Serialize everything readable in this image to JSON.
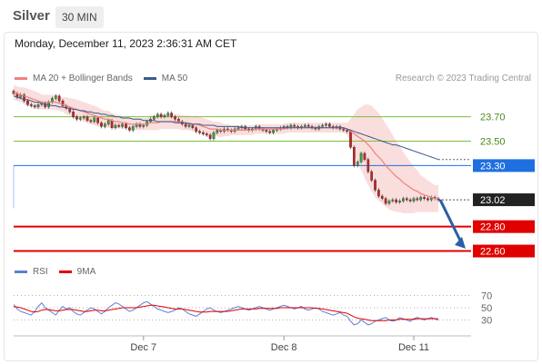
{
  "header": {
    "symbol": "Silver",
    "timeframe": "30 MIN"
  },
  "datetime": "Monday, December 11, 2023 2:36:31 AM CET",
  "copyright": "Research © 2023 Trading Central",
  "colors": {
    "ma20": "#f08080",
    "ma50": "#3a5a8c",
    "bands": "#f7c6c6",
    "resistance": "#7cbf3a",
    "pivot": "#1f6fe0",
    "support": "#e00000",
    "last": "#222222",
    "rsi": "#5b7fd6",
    "rsi_ma": "#e00000",
    "arrow": "#2a5fa8"
  },
  "chart_data": [
    {
      "type": "candlestick",
      "title": "",
      "legend": [
        {
          "name": "MA 20 + Bollinger Bands",
          "color": "#f08080"
        },
        {
          "name": "MA 50",
          "color": "#3a5a8c"
        }
      ],
      "x_ticks": [
        "Dec 7",
        "Dec 8",
        "Dec 11"
      ],
      "ylim": [
        22.5,
        23.95
      ],
      "close": [
        23.89,
        23.86,
        23.88,
        23.83,
        23.8,
        23.79,
        23.78,
        23.8,
        23.81,
        23.78,
        23.82,
        23.85,
        23.87,
        23.83,
        23.79,
        23.77,
        23.74,
        23.7,
        23.68,
        23.69,
        23.7,
        23.67,
        23.66,
        23.69,
        23.65,
        23.62,
        23.64,
        23.67,
        23.61,
        23.63,
        23.62,
        23.64,
        23.61,
        23.59,
        23.62,
        23.64,
        23.62,
        23.63,
        23.66,
        23.68,
        23.7,
        23.72,
        23.7,
        23.71,
        23.73,
        23.7,
        23.68,
        23.66,
        23.64,
        23.62,
        23.63,
        23.61,
        23.58,
        23.57,
        23.56,
        23.55,
        23.52,
        23.57,
        23.59,
        23.58,
        23.6,
        23.59,
        23.58,
        23.6,
        23.61,
        23.62,
        23.6,
        23.59,
        23.6,
        23.62,
        23.6,
        23.59,
        23.58,
        23.57,
        23.59,
        23.6,
        23.61,
        23.62,
        23.61,
        23.63,
        23.62,
        23.61,
        23.62,
        23.63,
        23.62,
        23.61,
        23.6,
        23.62,
        23.63,
        23.64,
        23.62,
        23.61,
        23.62,
        23.6,
        23.59,
        23.58,
        23.45,
        23.3,
        23.33,
        23.4,
        23.35,
        23.25,
        23.18,
        23.1,
        23.05,
        23.03,
        22.99,
        23.01,
        23.02,
        23.0,
        23.01,
        23.03,
        23.02,
        23.01,
        23.03,
        23.02,
        23.04,
        23.03,
        23.02,
        23.04,
        23.03,
        23.02
      ],
      "ma20": [
        23.9,
        23.89,
        23.88,
        23.87,
        23.86,
        23.85,
        23.84,
        23.83,
        23.82,
        23.82,
        23.82,
        23.82,
        23.82,
        23.81,
        23.8,
        23.79,
        23.78,
        23.77,
        23.76,
        23.75,
        23.74,
        23.73,
        23.72,
        23.71,
        23.7,
        23.69,
        23.68,
        23.68,
        23.67,
        23.66,
        23.66,
        23.65,
        23.65,
        23.64,
        23.64,
        23.64,
        23.64,
        23.64,
        23.64,
        23.65,
        23.65,
        23.65,
        23.66,
        23.66,
        23.66,
        23.66,
        23.66,
        23.66,
        23.65,
        23.65,
        23.65,
        23.64,
        23.64,
        23.63,
        23.62,
        23.61,
        23.6,
        23.6,
        23.6,
        23.59,
        23.59,
        23.59,
        23.59,
        23.59,
        23.59,
        23.59,
        23.59,
        23.59,
        23.59,
        23.6,
        23.6,
        23.6,
        23.6,
        23.6,
        23.6,
        23.6,
        23.6,
        23.6,
        23.61,
        23.61,
        23.61,
        23.61,
        23.61,
        23.61,
        23.61,
        23.61,
        23.61,
        23.61,
        23.61,
        23.61,
        23.61,
        23.61,
        23.61,
        23.61,
        23.61,
        23.6,
        23.58,
        23.56,
        23.54,
        23.52,
        23.5,
        23.47,
        23.44,
        23.4,
        23.37,
        23.34,
        23.3,
        23.27,
        23.24,
        23.21,
        23.19,
        23.16,
        23.14,
        23.12,
        23.1,
        23.09,
        23.07,
        23.06,
        23.05,
        23.04,
        23.03,
        23.03
      ],
      "band_width": [
        0.06,
        0.06,
        0.06,
        0.07,
        0.07,
        0.07,
        0.07,
        0.07,
        0.06,
        0.06,
        0.06,
        0.06,
        0.06,
        0.06,
        0.06,
        0.07,
        0.07,
        0.08,
        0.08,
        0.08,
        0.08,
        0.08,
        0.08,
        0.08,
        0.08,
        0.07,
        0.07,
        0.07,
        0.06,
        0.06,
        0.05,
        0.05,
        0.05,
        0.05,
        0.05,
        0.05,
        0.05,
        0.05,
        0.05,
        0.06,
        0.06,
        0.06,
        0.06,
        0.06,
        0.06,
        0.06,
        0.06,
        0.06,
        0.06,
        0.06,
        0.06,
        0.06,
        0.07,
        0.07,
        0.07,
        0.07,
        0.07,
        0.06,
        0.06,
        0.06,
        0.05,
        0.05,
        0.04,
        0.04,
        0.04,
        0.04,
        0.04,
        0.04,
        0.04,
        0.04,
        0.04,
        0.04,
        0.04,
        0.04,
        0.04,
        0.04,
        0.04,
        0.04,
        0.04,
        0.04,
        0.04,
        0.04,
        0.04,
        0.04,
        0.04,
        0.04,
        0.04,
        0.04,
        0.04,
        0.04,
        0.04,
        0.04,
        0.04,
        0.04,
        0.04,
        0.05,
        0.1,
        0.16,
        0.22,
        0.26,
        0.3,
        0.33,
        0.35,
        0.36,
        0.36,
        0.35,
        0.34,
        0.33,
        0.31,
        0.29,
        0.27,
        0.25,
        0.23,
        0.21,
        0.19,
        0.17,
        0.15,
        0.14,
        0.13,
        0.12,
        0.11,
        0.11
      ],
      "ma50": [
        23.87,
        23.86,
        23.85,
        23.84,
        23.84,
        23.83,
        23.82,
        23.82,
        23.81,
        23.8,
        23.8,
        23.79,
        23.79,
        23.78,
        23.78,
        23.77,
        23.77,
        23.76,
        23.76,
        23.75,
        23.75,
        23.74,
        23.74,
        23.73,
        23.73,
        23.72,
        23.72,
        23.71,
        23.71,
        23.7,
        23.7,
        23.69,
        23.69,
        23.69,
        23.68,
        23.68,
        23.68,
        23.67,
        23.67,
        23.67,
        23.67,
        23.66,
        23.66,
        23.66,
        23.66,
        23.66,
        23.65,
        23.65,
        23.65,
        23.65,
        23.64,
        23.64,
        23.64,
        23.64,
        23.63,
        23.63,
        23.63,
        23.63,
        23.62,
        23.62,
        23.62,
        23.62,
        23.62,
        23.62,
        23.62,
        23.61,
        23.61,
        23.61,
        23.61,
        23.61,
        23.61,
        23.61,
        23.61,
        23.61,
        23.61,
        23.61,
        23.61,
        23.61,
        23.61,
        23.61,
        23.61,
        23.61,
        23.61,
        23.61,
        23.61,
        23.61,
        23.61,
        23.61,
        23.61,
        23.61,
        23.61,
        23.61,
        23.61,
        23.61,
        23.61,
        23.6,
        23.59,
        23.58,
        23.57,
        23.56,
        23.55,
        23.54,
        23.53,
        23.52,
        23.51,
        23.5,
        23.49,
        23.48,
        23.47,
        23.47,
        23.46,
        23.45,
        23.44,
        23.43,
        23.42,
        23.41,
        23.4,
        23.39,
        23.38,
        23.37,
        23.36,
        23.35
      ],
      "levels": [
        {
          "label": "23.70",
          "value": 23.7,
          "kind": "resistance"
        },
        {
          "label": "23.50",
          "value": 23.5,
          "kind": "resistance"
        },
        {
          "label": "23.30",
          "value": 23.3,
          "kind": "pivot"
        },
        {
          "label": "23.02",
          "value": 23.02,
          "kind": "last"
        },
        {
          "label": "22.80",
          "value": 22.8,
          "kind": "support"
        },
        {
          "label": "22.60",
          "value": 22.6,
          "kind": "support"
        }
      ]
    },
    {
      "type": "line",
      "title": "",
      "legend": [
        {
          "name": "RSI",
          "color": "#5b7fd6"
        },
        {
          "name": "9MA",
          "color": "#e00000"
        }
      ],
      "ylim": [
        10,
        90
      ],
      "y_ticks": [
        "70",
        "50",
        "30"
      ],
      "rsi": [
        55,
        48,
        44,
        42,
        40,
        38,
        44,
        52,
        58,
        50,
        46,
        42,
        38,
        46,
        52,
        48,
        50,
        44,
        40,
        38,
        42,
        46,
        50,
        48,
        44,
        40,
        44,
        50,
        54,
        58,
        56,
        52,
        48,
        44,
        46,
        50,
        54,
        58,
        60,
        56,
        52,
        48,
        46,
        44,
        42,
        44,
        46,
        50,
        48,
        44,
        40,
        38,
        36,
        40,
        44,
        48,
        50,
        46,
        44,
        42,
        44,
        46,
        48,
        50,
        52,
        50,
        48,
        46,
        48,
        50,
        52,
        50,
        48,
        46,
        48,
        50,
        52,
        54,
        52,
        50,
        48,
        50,
        52,
        48,
        46,
        48,
        50,
        48,
        44,
        42,
        40,
        38,
        40,
        42,
        38,
        36,
        28,
        22,
        24,
        30,
        26,
        22,
        24,
        28,
        30,
        32,
        34,
        30,
        28,
        30,
        34,
        32,
        30,
        28,
        32,
        34,
        32,
        30,
        32,
        34,
        32,
        30
      ],
      "rsi_ma": [
        52,
        51,
        50,
        48,
        46,
        44,
        43,
        44,
        46,
        47,
        47,
        46,
        45,
        45,
        46,
        47,
        47,
        47,
        46,
        45,
        44,
        44,
        45,
        46,
        46,
        45,
        45,
        46,
        47,
        48,
        49,
        50,
        50,
        50,
        50,
        50,
        51,
        52,
        53,
        54,
        54,
        53,
        52,
        51,
        50,
        49,
        48,
        48,
        48,
        47,
        46,
        45,
        44,
        43,
        43,
        43,
        44,
        44,
        44,
        44,
        44,
        44,
        45,
        46,
        47,
        48,
        48,
        48,
        48,
        48,
        49,
        49,
        49,
        49,
        49,
        49,
        50,
        50,
        50,
        50,
        50,
        50,
        50,
        50,
        50,
        50,
        49,
        49,
        48,
        47,
        46,
        45,
        44,
        43,
        42,
        41,
        38,
        35,
        33,
        32,
        31,
        30,
        29,
        29,
        29,
        29,
        29,
        30,
        30,
        30,
        31,
        31,
        31,
        31,
        31,
        32,
        32,
        32,
        32,
        32,
        32,
        32
      ]
    }
  ]
}
